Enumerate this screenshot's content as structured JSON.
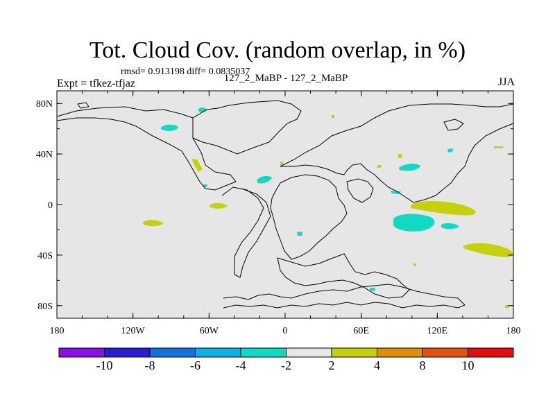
{
  "title": "Tot. Cloud Cov. (random overlap, in %)",
  "stats": {
    "rmsd_label": "rmsd= 0.913198 diff= 0.0835037"
  },
  "subtitle": "127_2_MaBP - 127_2_MaBP",
  "experiment": "Expt = tfkez-tfjaz",
  "season": "JJA",
  "axes": {
    "lon_ticks": [
      {
        "value": -180,
        "label": "180"
      },
      {
        "value": -120,
        "label": "120W"
      },
      {
        "value": -60,
        "label": "60W"
      },
      {
        "value": 0,
        "label": "0"
      },
      {
        "value": 60,
        "label": "60E"
      },
      {
        "value": 120,
        "label": "120E"
      },
      {
        "value": 180,
        "label": "180"
      }
    ],
    "lat_ticks": [
      {
        "value": 80,
        "label": "80N"
      },
      {
        "value": 40,
        "label": "40N"
      },
      {
        "value": 0,
        "label": "0"
      },
      {
        "value": -40,
        "label": "40S"
      },
      {
        "value": -80,
        "label": "80S"
      }
    ]
  },
  "colorbar": {
    "colors": [
      "#8a0ee6",
      "#2b1bd6",
      "#1670dc",
      "#10b0e2",
      "#10d9c4",
      "#e6e6e6",
      "#c5d10a",
      "#e08d0a",
      "#e2520e",
      "#e10f10"
    ],
    "labels": [
      "-10",
      "-8",
      "-6",
      "-4",
      "-2",
      "2",
      "4",
      "8",
      "10"
    ]
  },
  "colors": {
    "background_level": "#e6e6e6",
    "cyan": "#10d9c4",
    "yellowgreen": "#c5d10a"
  }
}
